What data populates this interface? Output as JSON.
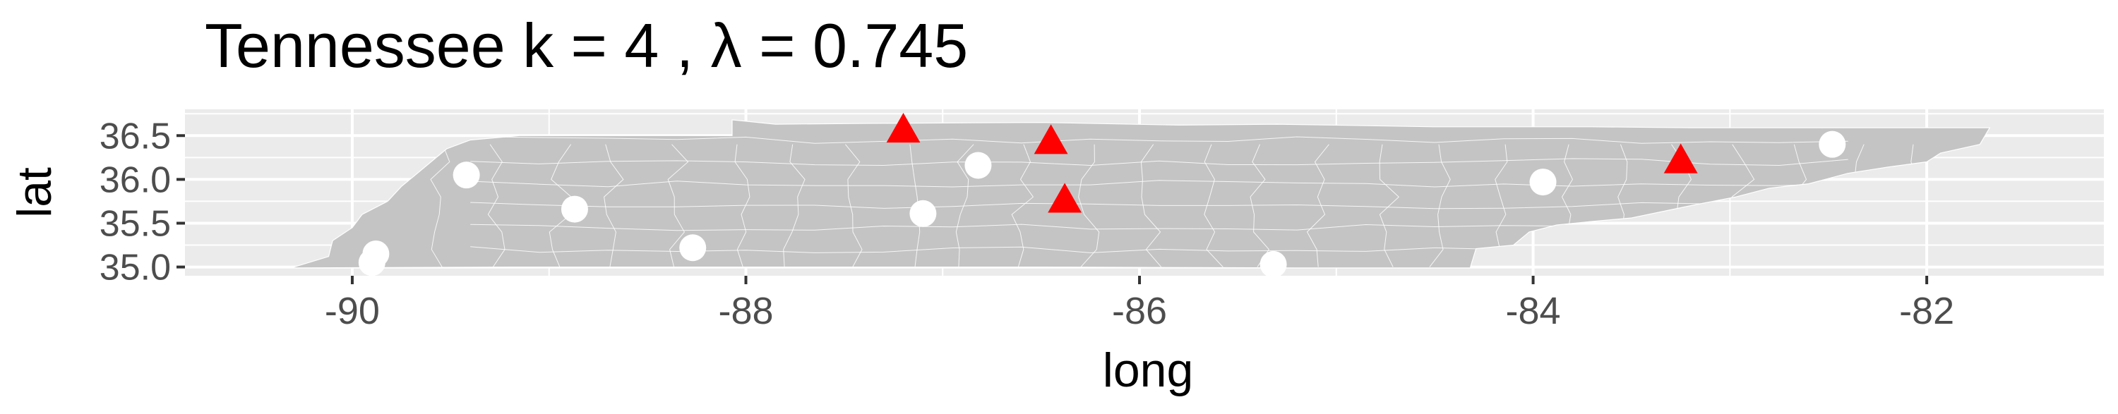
{
  "chart_data": {
    "type": "scatter",
    "title": "Tennessee  k =  4 ,  λ  =  0.745",
    "xlabel": "long",
    "ylabel": "lat",
    "xlim": [
      -90.85,
      -81.1
    ],
    "ylim": [
      34.9,
      36.8
    ],
    "x_ticks": [
      -90,
      -88,
      -86,
      -84,
      -82
    ],
    "x_tick_labels": [
      "-90",
      "-88",
      "-86",
      "-84",
      "-82"
    ],
    "y_ticks": [
      35.0,
      35.5,
      36.0,
      36.5
    ],
    "y_tick_labels": [
      "35.0",
      "35.5",
      "36.0",
      "36.5"
    ],
    "grid": true,
    "legend": "none",
    "background": "#ebebeb",
    "map_fill": "#c4c4c4",
    "series": [
      {
        "marker": "circle",
        "color": "#ffffff",
        "points": [
          {
            "x": -89.88,
            "y": 35.15
          },
          {
            "x": -89.9,
            "y": 35.05
          },
          {
            "x": -89.42,
            "y": 36.05
          },
          {
            "x": -88.87,
            "y": 35.66
          },
          {
            "x": -88.27,
            "y": 35.22
          },
          {
            "x": -87.1,
            "y": 35.61
          },
          {
            "x": -86.82,
            "y": 36.16
          },
          {
            "x": -85.32,
            "y": 35.03
          },
          {
            "x": -83.95,
            "y": 35.97
          },
          {
            "x": -82.48,
            "y": 36.4
          }
        ]
      },
      {
        "marker": "triangle",
        "color": "#ff0000",
        "points": [
          {
            "x": -87.2,
            "y": 36.55
          },
          {
            "x": -86.45,
            "y": 36.42
          },
          {
            "x": -86.38,
            "y": 35.75
          },
          {
            "x": -83.25,
            "y": 36.2
          }
        ]
      }
    ]
  }
}
